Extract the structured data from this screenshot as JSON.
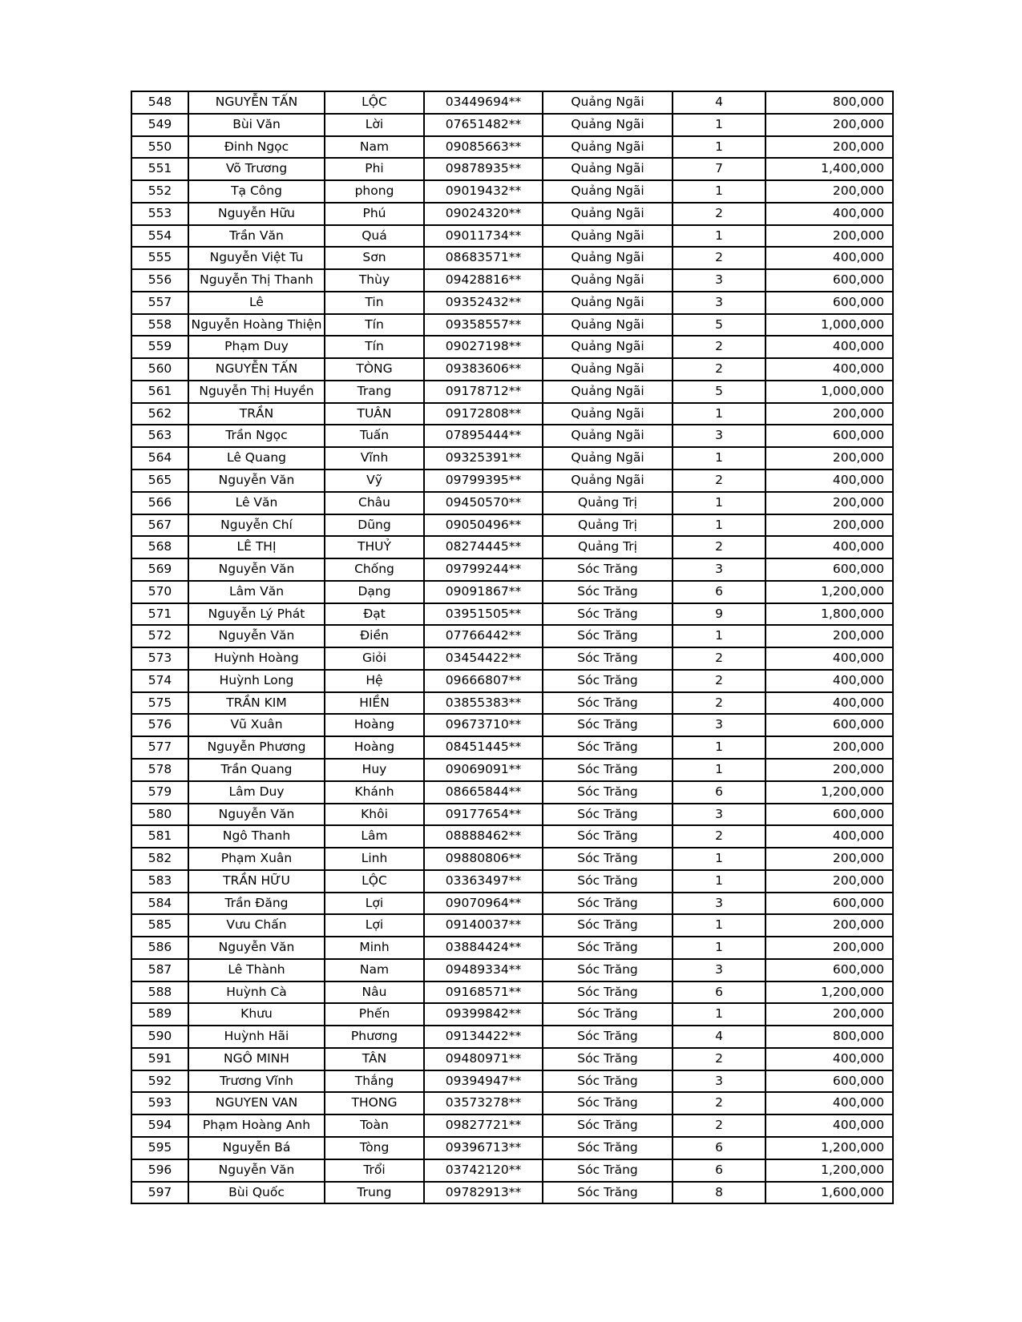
{
  "table": {
    "column_keys": [
      "id",
      "first_name",
      "last_name",
      "phone",
      "province",
      "count",
      "amount"
    ],
    "rows": [
      {
        "id": "548",
        "first_name": "NGUYỄN TẤN",
        "last_name": "LỘC",
        "phone": "03449694**",
        "province": "Quảng Ngãi",
        "count": "4",
        "amount": "800,000"
      },
      {
        "id": "549",
        "first_name": "Bùi Văn",
        "last_name": "Lời",
        "phone": "07651482**",
        "province": "Quảng Ngãi",
        "count": "1",
        "amount": "200,000"
      },
      {
        "id": "550",
        "first_name": "Đinh Ngọc",
        "last_name": "Nam",
        "phone": "09085663**",
        "province": "Quảng Ngãi",
        "count": "1",
        "amount": "200,000"
      },
      {
        "id": "551",
        "first_name": "Võ Trương",
        "last_name": "Phi",
        "phone": "09878935**",
        "province": "Quảng Ngãi",
        "count": "7",
        "amount": "1,400,000"
      },
      {
        "id": "552",
        "first_name": "Tạ Công",
        "last_name": "phong",
        "phone": "09019432**",
        "province": "Quảng Ngãi",
        "count": "1",
        "amount": "200,000"
      },
      {
        "id": "553",
        "first_name": "Nguyễn Hữu",
        "last_name": "Phú",
        "phone": "09024320**",
        "province": "Quảng Ngãi",
        "count": "2",
        "amount": "400,000"
      },
      {
        "id": "554",
        "first_name": "Trần Văn",
        "last_name": "Quá",
        "phone": "09011734**",
        "province": "Quảng Ngãi",
        "count": "1",
        "amount": "200,000"
      },
      {
        "id": "555",
        "first_name": "Nguyễn Việt Tu",
        "last_name": "Sơn",
        "phone": "08683571**",
        "province": "Quảng Ngãi",
        "count": "2",
        "amount": "400,000"
      },
      {
        "id": "556",
        "first_name": "Nguyễn Thị Thanh",
        "last_name": "Thùy",
        "phone": "09428816**",
        "province": "Quảng Ngãi",
        "count": "3",
        "amount": "600,000"
      },
      {
        "id": "557",
        "first_name": "Lê",
        "last_name": "Tin",
        "phone": "09352432**",
        "province": "Quảng Ngãi",
        "count": "3",
        "amount": "600,000"
      },
      {
        "id": "558",
        "first_name": "Nguyễn Hoàng Thiện",
        "last_name": "Tín",
        "phone": "09358557**",
        "province": "Quảng Ngãi",
        "count": "5",
        "amount": "1,000,000"
      },
      {
        "id": "559",
        "first_name": "Phạm Duy",
        "last_name": "Tín",
        "phone": "09027198**",
        "province": "Quảng Ngãi",
        "count": "2",
        "amount": "400,000"
      },
      {
        "id": "560",
        "first_name": "NGUYỄN TẤN",
        "last_name": "TÒNG",
        "phone": "09383606**",
        "province": "Quảng Ngãi",
        "count": "2",
        "amount": "400,000"
      },
      {
        "id": "561",
        "first_name": "Nguyễn Thị Huyền",
        "last_name": "Trang",
        "phone": "09178712**",
        "province": "Quảng Ngãi",
        "count": "5",
        "amount": "1,000,000"
      },
      {
        "id": "562",
        "first_name": "TRẦN",
        "last_name": "TUÂN",
        "phone": "09172808**",
        "province": "Quảng Ngãi",
        "count": "1",
        "amount": "200,000"
      },
      {
        "id": "563",
        "first_name": "Trần Ngọc",
        "last_name": "Tuấn",
        "phone": "07895444**",
        "province": "Quảng Ngãi",
        "count": "3",
        "amount": "600,000"
      },
      {
        "id": "564",
        "first_name": "Lê Quang",
        "last_name": "Vĩnh",
        "phone": "09325391**",
        "province": "Quảng Ngãi",
        "count": "1",
        "amount": "200,000"
      },
      {
        "id": "565",
        "first_name": "Nguyễn Văn",
        "last_name": "Vỹ",
        "phone": "09799395**",
        "province": "Quảng Ngãi",
        "count": "2",
        "amount": "400,000"
      },
      {
        "id": "566",
        "first_name": "Lê Văn",
        "last_name": "Châu",
        "phone": "09450570**",
        "province": "Quảng Trị",
        "count": "1",
        "amount": "200,000"
      },
      {
        "id": "567",
        "first_name": "Nguyễn Chí",
        "last_name": "Dũng",
        "phone": "09050496**",
        "province": "Quảng Trị",
        "count": "1",
        "amount": "200,000"
      },
      {
        "id": "568",
        "first_name": "LÊ THỊ",
        "last_name": "THUỶ",
        "phone": "08274445**",
        "province": "Quảng Trị",
        "count": "2",
        "amount": "400,000"
      },
      {
        "id": "569",
        "first_name": "Nguyễn Văn",
        "last_name": "Chống",
        "phone": "09799244**",
        "province": "Sóc Trăng",
        "count": "3",
        "amount": "600,000"
      },
      {
        "id": "570",
        "first_name": "Lâm Văn",
        "last_name": "Dạng",
        "phone": "09091867**",
        "province": "Sóc Trăng",
        "count": "6",
        "amount": "1,200,000"
      },
      {
        "id": "571",
        "first_name": "Nguyễn Lý Phát",
        "last_name": "Đạt",
        "phone": "03951505**",
        "province": "Sóc Trăng",
        "count": "9",
        "amount": "1,800,000"
      },
      {
        "id": "572",
        "first_name": "Nguyễn Văn",
        "last_name": "Điền",
        "phone": "07766442**",
        "province": "Sóc Trăng",
        "count": "1",
        "amount": "200,000"
      },
      {
        "id": "573",
        "first_name": "Huỳnh Hoàng",
        "last_name": "Giỏi",
        "phone": "03454422**",
        "province": "Sóc Trăng",
        "count": "2",
        "amount": "400,000"
      },
      {
        "id": "574",
        "first_name": "Huỳnh Long",
        "last_name": "Hệ",
        "phone": "09666807**",
        "province": "Sóc Trăng",
        "count": "2",
        "amount": "400,000"
      },
      {
        "id": "575",
        "first_name": "TRẦN KIM",
        "last_name": "HIỀN",
        "phone": "03855383**",
        "province": "Sóc Trăng",
        "count": "2",
        "amount": "400,000"
      },
      {
        "id": "576",
        "first_name": "Vũ Xuân",
        "last_name": "Hoàng",
        "phone": "09673710**",
        "province": "Sóc Trăng",
        "count": "3",
        "amount": "600,000"
      },
      {
        "id": "577",
        "first_name": "Nguyễn Phương",
        "last_name": "Hoàng",
        "phone": "08451445**",
        "province": "Sóc Trăng",
        "count": "1",
        "amount": "200,000"
      },
      {
        "id": "578",
        "first_name": "Trần Quang",
        "last_name": "Huy",
        "phone": "09069091**",
        "province": "Sóc Trăng",
        "count": "1",
        "amount": "200,000"
      },
      {
        "id": "579",
        "first_name": "Lâm Duy",
        "last_name": "Khánh",
        "phone": "08665844**",
        "province": "Sóc Trăng",
        "count": "6",
        "amount": "1,200,000"
      },
      {
        "id": "580",
        "first_name": "Nguyễn Văn",
        "last_name": "Khôi",
        "phone": "09177654**",
        "province": "Sóc Trăng",
        "count": "3",
        "amount": "600,000"
      },
      {
        "id": "581",
        "first_name": "Ngô Thanh",
        "last_name": "Lâm",
        "phone": "08888462**",
        "province": "Sóc Trăng",
        "count": "2",
        "amount": "400,000"
      },
      {
        "id": "582",
        "first_name": "Phạm Xuân",
        "last_name": "Linh",
        "phone": "09880806**",
        "province": "Sóc Trăng",
        "count": "1",
        "amount": "200,000"
      },
      {
        "id": "583",
        "first_name": "TRẦN HỮU",
        "last_name": "LỘC",
        "phone": "03363497**",
        "province": "Sóc Trăng",
        "count": "1",
        "amount": "200,000"
      },
      {
        "id": "584",
        "first_name": "Trần Đăng",
        "last_name": "Lợi",
        "phone": "09070964**",
        "province": "Sóc Trăng",
        "count": "3",
        "amount": "600,000"
      },
      {
        "id": "585",
        "first_name": "Vưu Chấn",
        "last_name": "Lợi",
        "phone": "09140037**",
        "province": "Sóc Trăng",
        "count": "1",
        "amount": "200,000"
      },
      {
        "id": "586",
        "first_name": "Nguyễn Văn",
        "last_name": "Minh",
        "phone": "03884424**",
        "province": "Sóc Trăng",
        "count": "1",
        "amount": "200,000"
      },
      {
        "id": "587",
        "first_name": "Lê Thành",
        "last_name": "Nam",
        "phone": "09489334**",
        "province": "Sóc Trăng",
        "count": "3",
        "amount": "600,000"
      },
      {
        "id": "588",
        "first_name": "Huỳnh Cà",
        "last_name": "Nâu",
        "phone": "09168571**",
        "province": "Sóc Trăng",
        "count": "6",
        "amount": "1,200,000"
      },
      {
        "id": "589",
        "first_name": "Khưu",
        "last_name": "Phến",
        "phone": "09399842**",
        "province": "Sóc Trăng",
        "count": "1",
        "amount": "200,000"
      },
      {
        "id": "590",
        "first_name": "Huỳnh Hãi",
        "last_name": "Phương",
        "phone": "09134422**",
        "province": "Sóc Trăng",
        "count": "4",
        "amount": "800,000"
      },
      {
        "id": "591",
        "first_name": "NGÔ MINH",
        "last_name": "TÂN",
        "phone": "09480971**",
        "province": "Sóc Trăng",
        "count": "2",
        "amount": "400,000"
      },
      {
        "id": "592",
        "first_name": "Trương Vĩnh",
        "last_name": "Thắng",
        "phone": "09394947**",
        "province": "Sóc Trăng",
        "count": "3",
        "amount": "600,000"
      },
      {
        "id": "593",
        "first_name": "NGUYEN VAN",
        "last_name": "THONG",
        "phone": "03573278**",
        "province": "Sóc Trăng",
        "count": "2",
        "amount": "400,000"
      },
      {
        "id": "594",
        "first_name": "Phạm Hoàng Anh",
        "last_name": "Toàn",
        "phone": "09827721**",
        "province": "Sóc Trăng",
        "count": "2",
        "amount": "400,000"
      },
      {
        "id": "595",
        "first_name": "Nguyễn Bá",
        "last_name": "Tòng",
        "phone": "09396713**",
        "province": "Sóc Trăng",
        "count": "6",
        "amount": "1,200,000"
      },
      {
        "id": "596",
        "first_name": "Nguyễn Văn",
        "last_name": "Trổi",
        "phone": "03742120**",
        "province": "Sóc Trăng",
        "count": "6",
        "amount": "1,200,000"
      },
      {
        "id": "597",
        "first_name": "Bùi Quốc",
        "last_name": "Trung",
        "phone": "09782913**",
        "province": "Sóc Trăng",
        "count": "8",
        "amount": "1,600,000"
      }
    ]
  }
}
